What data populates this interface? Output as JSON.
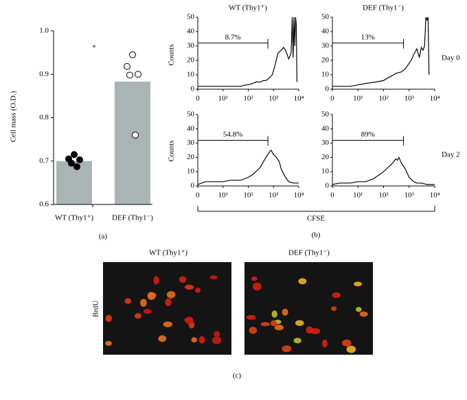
{
  "chart_data": [
    {
      "type": "bar",
      "panel_label": "(a)",
      "y_label": "Cell mass (O.D.)",
      "annotation": "*",
      "categories": [
        "WT (Thy1⁺)",
        "DEF (Thy1⁻)"
      ],
      "values": [
        0.7,
        0.883
      ],
      "color": "#a9b5b5",
      "points": [
        [
          0.715,
          0.705,
          0.703,
          0.695,
          0.687
        ],
        [
          0.945,
          0.918,
          0.9,
          0.898,
          0.76
        ]
      ],
      "point_colors": [
        "#000000",
        "#ffffff"
      ],
      "ylim": [
        0.6,
        1.0
      ],
      "yticks": [
        0.6,
        0.7,
        0.8,
        0.9,
        {
          "value": 1.0,
          "label": "1.0"
        }
      ]
    },
    {
      "type": "line",
      "color": "#000000",
      "xscale": "log",
      "x": [
        1,
        5,
        20,
        50,
        80,
        100,
        150,
        200,
        300,
        400,
        500,
        700,
        900,
        1200,
        1500,
        2000,
        2500,
        3000,
        4000,
        5000,
        5500,
        6000,
        6500,
        7000,
        7500,
        8000,
        8500
      ],
      "values": [
        2,
        2,
        2,
        2,
        3,
        3,
        4,
        5,
        5,
        6,
        6,
        8,
        10,
        18,
        25,
        27,
        29,
        27,
        21,
        25,
        50,
        22,
        50,
        30,
        50,
        45,
        5
      ],
      "gate": {
        "x": [
          1,
          600
        ],
        "y": 32,
        "label": "8.7%"
      },
      "xlim": [
        1,
        10000
      ],
      "ylim": [
        0,
        50
      ],
      "yticks": [
        0,
        10,
        20,
        30,
        40,
        50
      ],
      "xticks": [
        {
          "value": 1,
          "label": "0"
        },
        {
          "value": 10,
          "label": "10¹"
        },
        {
          "value": 100,
          "label": "10²"
        },
        {
          "value": 1000,
          "label": "10³"
        },
        {
          "value": 10000,
          "label": "10⁴"
        }
      ]
    },
    {
      "type": "line",
      "color": "#000000",
      "xscale": "log",
      "x": [
        1,
        5,
        10,
        20,
        50,
        100,
        150,
        200,
        300,
        500,
        700,
        1000,
        1200,
        1500,
        2000,
        2500,
        3000,
        3500,
        4000,
        4500,
        5000,
        5500,
        6000
      ],
      "values": [
        2,
        2,
        3,
        4,
        5,
        6,
        8,
        9,
        11,
        12,
        14,
        18,
        20,
        24,
        28,
        22,
        29,
        27,
        30,
        50,
        48,
        50,
        10
      ],
      "gate": {
        "x": [
          1,
          600
        ],
        "y": 32,
        "label": "13%"
      },
      "xlim": [
        1,
        10000
      ],
      "ylim": [
        0,
        50
      ],
      "yticks": [
        0,
        10,
        20,
        30,
        40,
        50
      ],
      "xticks": [
        {
          "value": 1,
          "label": "0"
        },
        {
          "value": 10,
          "label": "10¹"
        },
        {
          "value": 100,
          "label": "10²"
        },
        {
          "value": 1000,
          "label": "10³"
        },
        {
          "value": 10000,
          "label": "10⁴"
        }
      ]
    },
    {
      "type": "line",
      "color": "#000000",
      "xscale": "log",
      "x": [
        1,
        2,
        5,
        10,
        20,
        50,
        100,
        150,
        200,
        300,
        400,
        500,
        600,
        700,
        800,
        1000,
        1300,
        1700,
        2000,
        3000,
        4000,
        6000,
        10000
      ],
      "values": [
        1,
        3,
        3,
        3,
        4,
        4,
        6,
        8,
        10,
        13,
        17,
        20,
        22,
        24,
        25,
        22,
        20,
        17,
        12,
        6,
        3,
        2,
        2
      ],
      "gate": {
        "x": [
          1,
          600
        ],
        "y": 32,
        "label": "54.8%"
      },
      "xlim": [
        1,
        10000
      ],
      "ylim": [
        0,
        50
      ],
      "yticks": [
        0,
        10,
        20,
        30,
        40,
        50
      ],
      "xticks": [
        {
          "value": 1,
          "label": "0"
        },
        {
          "value": 10,
          "label": "10¹"
        },
        {
          "value": 100,
          "label": "10²"
        },
        {
          "value": 1000,
          "label": "10³"
        },
        {
          "value": 10000,
          "label": "10⁴"
        }
      ]
    },
    {
      "type": "line",
      "color": "#000000",
      "xscale": "log",
      "x": [
        1,
        2,
        5,
        10,
        20,
        40,
        70,
        100,
        150,
        200,
        250,
        300,
        350,
        400,
        500,
        700,
        1000,
        1500,
        2000,
        3000,
        5000,
        10000
      ],
      "values": [
        1,
        2,
        2,
        3,
        3,
        5,
        8,
        10,
        13,
        15,
        17,
        19,
        18,
        20,
        16,
        12,
        6,
        3,
        2,
        2,
        1,
        1
      ],
      "gate": {
        "x": [
          1,
          600
        ],
        "y": 32,
        "label": "89%"
      },
      "xlim": [
        1,
        10000
      ],
      "ylim": [
        0,
        50
      ],
      "yticks": [
        0,
        10,
        20,
        30,
        40,
        50
      ],
      "xticks": [
        {
          "value": 1,
          "label": "0"
        },
        {
          "value": 10,
          "label": "10¹"
        },
        {
          "value": 100,
          "label": "10²"
        },
        {
          "value": 1000,
          "label": "10³"
        },
        {
          "value": 10000,
          "label": "10⁴"
        }
      ]
    }
  ],
  "panel_b": {
    "label": "(b)",
    "x_label": "CFSE",
    "y_label": "Counts",
    "columns": [
      "WT (Thy1⁺)",
      "DEF (Thy1⁻)"
    ],
    "rows": [
      "Day 0",
      "Day 2"
    ]
  },
  "panel_c": {
    "label": "(c)",
    "row_label": "BrdU",
    "columns": [
      "WT (Thy1⁺)",
      "DEF (Thy1⁻)"
    ]
  }
}
